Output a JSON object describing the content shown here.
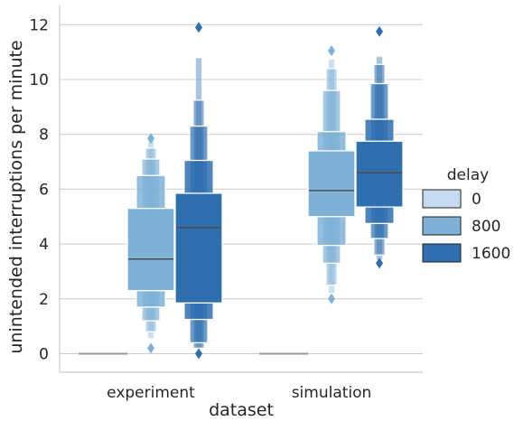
{
  "chart_data": {
    "type": "boxen",
    "xlabel": "dataset",
    "ylabel": "unintended interruptions per minute",
    "categories": [
      "experiment",
      "simulation"
    ],
    "ylim": [
      -0.7,
      12.6
    ],
    "yticks": [
      0,
      2,
      4,
      6,
      8,
      10,
      12
    ],
    "grid": "horizontal",
    "legend": {
      "title": "delay",
      "position": "right",
      "entries": [
        "0",
        "800",
        "1600"
      ]
    },
    "colors": {
      "0": "#c6dbef",
      "800": "#7fb1d7",
      "1600": "#2f6fae"
    },
    "series": [
      {
        "name": "0",
        "boxes": [
          {
            "category": "experiment",
            "levels": [
              [
                0,
                0
              ]
            ],
            "median": 0,
            "outliers": []
          },
          {
            "category": "simulation",
            "levels": [
              [
                0,
                0
              ]
            ],
            "median": 0,
            "outliers": []
          }
        ]
      },
      {
        "name": "800",
        "boxes": [
          {
            "category": "experiment",
            "levels": [
              [
                2.3,
                5.3
              ],
              [
                1.7,
                6.5
              ],
              [
                1.2,
                7.1
              ],
              [
                0.8,
                7.5
              ],
              [
                0.55,
                7.75
              ]
            ],
            "median": 3.45,
            "outliers": [
              0.2,
              7.85
            ]
          },
          {
            "category": "simulation",
            "levels": [
              [
                5.0,
                7.4
              ],
              [
                3.95,
                8.1
              ],
              [
                3.3,
                9.6
              ],
              [
                2.5,
                10.4
              ],
              [
                2.2,
                10.75
              ]
            ],
            "median": 5.95,
            "outliers": [
              2.0,
              11.05
            ]
          }
        ]
      },
      {
        "name": "1600",
        "boxes": [
          {
            "category": "experiment",
            "levels": [
              [
                1.85,
                5.85
              ],
              [
                1.25,
                7.05
              ],
              [
                0.4,
                8.3
              ],
              [
                0.2,
                9.25
              ],
              [
                0.15,
                10.8
              ]
            ],
            "median": 4.6,
            "outliers": [
              0.0,
              11.9
            ]
          },
          {
            "category": "simulation",
            "levels": [
              [
                5.35,
                7.75
              ],
              [
                4.75,
                8.55
              ],
              [
                4.2,
                9.85
              ],
              [
                3.6,
                10.55
              ],
              [
                3.4,
                10.85
              ]
            ],
            "median": 6.6,
            "outliers": [
              3.3,
              11.75
            ]
          }
        ]
      }
    ]
  }
}
